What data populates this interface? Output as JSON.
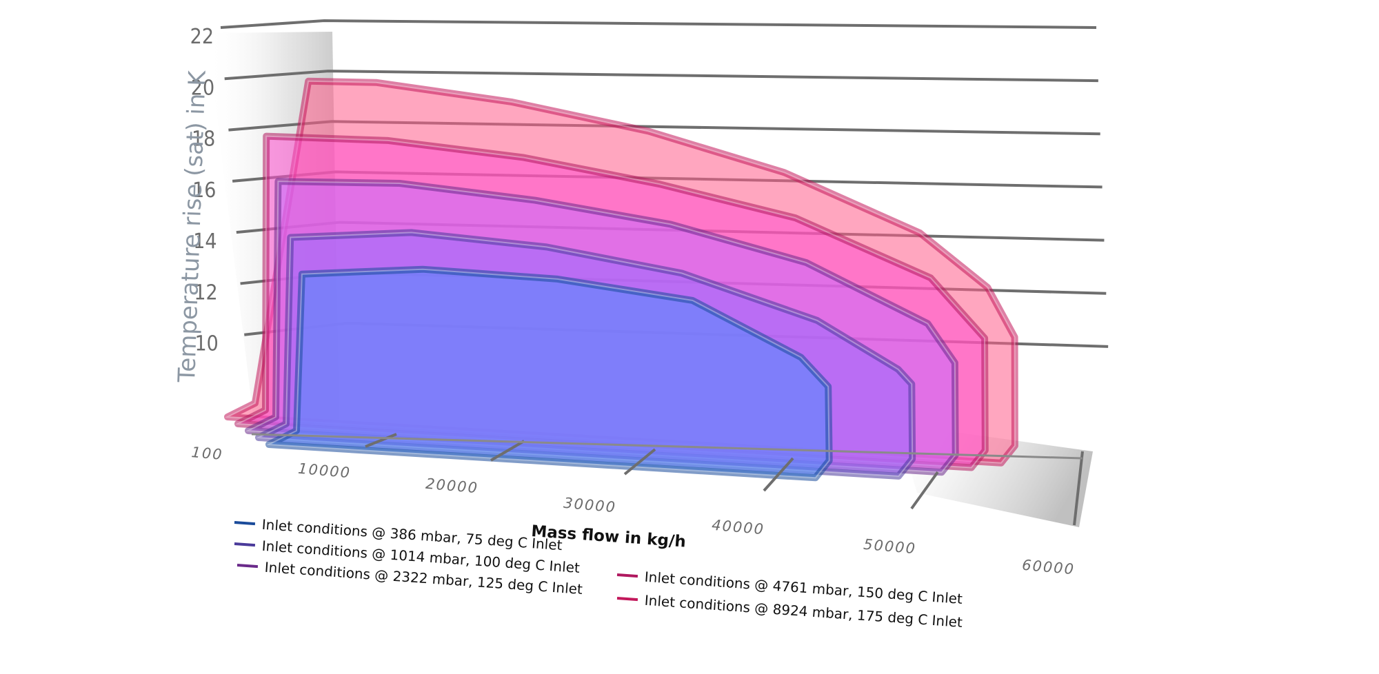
{
  "chart_data": {
    "type": "area",
    "subtype": "3d-stacked-area",
    "xlabel": "Mass flow in kg/h",
    "ylabel": "Temperature rise (sat) in K",
    "x_ticks": [
      "100",
      "10000",
      "20000",
      "30000",
      "40000",
      "50000",
      "60000"
    ],
    "y_ticks": [
      "10",
      "12",
      "14",
      "16",
      "18",
      "20",
      "22"
    ],
    "xlim": [
      100,
      60000
    ],
    "ylim": [
      8,
      22
    ],
    "grid": true,
    "legend_position": "bottom",
    "series": [
      {
        "name": "Inlet conditions @ 8924 mbar, 175 deg C Inlet",
        "color": "#c2185b",
        "fill": "#ff5c8a",
        "x": [
          100,
          5000,
          10000,
          20000,
          30000,
          40000,
          50000,
          55000,
          57000,
          57000
        ],
        "y": [
          8,
          21.5,
          21.6,
          21.1,
          20.2,
          18.8,
          16.6,
          14.5,
          12.5,
          8
        ]
      },
      {
        "name": "Inlet conditions @ 4761 mbar, 150 deg C Inlet",
        "color": "#b0185f",
        "fill": "#ff4fd0",
        "x": [
          100,
          1000,
          10000,
          20000,
          30000,
          40000,
          50000,
          54000,
          54000
        ],
        "y": [
          8,
          19.5,
          19.6,
          19.2,
          18.4,
          17.3,
          15.1,
          12.7,
          8
        ]
      },
      {
        "name": "Inlet conditions @ 2322 mbar, 125 deg C Inlet",
        "color": "#6a2a8a",
        "fill": "#c86bff",
        "x": [
          100,
          1000,
          10000,
          20000,
          30000,
          40000,
          49000,
          51000,
          51000
        ],
        "y": [
          8,
          18.0,
          18.2,
          17.8,
          17.1,
          15.8,
          13.5,
          11.9,
          8
        ]
      },
      {
        "name": "Inlet conditions @ 1014 mbar, 100 deg C Inlet",
        "color": "#4a3a9a",
        "fill": "#9a6bff",
        "x": [
          100,
          1000,
          10000,
          20000,
          30000,
          40000,
          46000,
          47000,
          47000
        ],
        "y": [
          8,
          16.0,
          16.5,
          16.2,
          15.4,
          13.7,
          11.8,
          11.2,
          8
        ]
      },
      {
        "name": "Inlet conditions @ 386 mbar, 75 deg C Inlet",
        "color": "#1a4b9a",
        "fill": "#4f8cff",
        "x": [
          100,
          1000,
          10000,
          20000,
          30000,
          38000,
          40000,
          40000
        ],
        "y": [
          8,
          14.8,
          15.3,
          15.2,
          14.6,
          12.4,
          11.2,
          8
        ]
      }
    ],
    "legend": [
      {
        "label": "Inlet conditions @ 386 mbar, 75 deg C Inlet",
        "color": "#1a4b9a"
      },
      {
        "label": "Inlet conditions @ 1014 mbar, 100 deg C Inlet",
        "color": "#4a3a9a"
      },
      {
        "label": "Inlet conditions @ 2322 mbar, 125 deg C Inlet",
        "color": "#6a2a8a"
      },
      {
        "label": "Inlet conditions @ 4761 mbar, 150 deg C Inlet",
        "color": "#b0185f"
      },
      {
        "label": "Inlet conditions @ 8924 mbar, 175 deg C Inlet",
        "color": "#c2185b"
      }
    ]
  }
}
